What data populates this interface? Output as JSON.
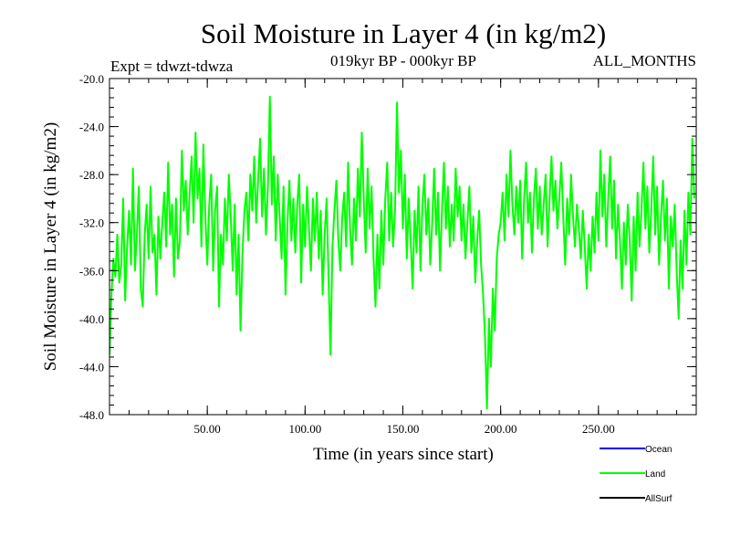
{
  "chart_data": {
    "type": "line",
    "title": "Soil Moisture in Layer 4 (in kg/m2)",
    "subtitle_left": "Expt = tdwzt-tdwza",
    "subtitle_center": "019kyr BP - 000kyr BP",
    "subtitle_right": "ALL_MONTHS",
    "xlabel": "Time (in years since start)",
    "ylabel": "Soil Moisture in Layer 4 (in kg/m2)",
    "xlim": [
      0,
      300
    ],
    "ylim": [
      -48,
      -20
    ],
    "x_ticks": [
      50,
      100,
      150,
      200,
      250
    ],
    "x_tick_labels": [
      "50.00",
      "100.00",
      "150.00",
      "200.00",
      "250.00"
    ],
    "y_ticks": [
      -20,
      -24,
      -28,
      -32,
      -36,
      -40,
      -44,
      -48
    ],
    "y_tick_labels": [
      "-20.0",
      "-24.0",
      "-28.0",
      "-32.0",
      "-36.0",
      "-40.0",
      "-44.0",
      "-48.0"
    ],
    "grid": false,
    "legend_position": "bottom-right",
    "series": [
      {
        "name": "Land",
        "color": "#00ff00",
        "x_start": 0,
        "x_step": 1,
        "values": [
          -43.0,
          -38.0,
          -35.0,
          -36.5,
          -33.0,
          -37.0,
          -35.5,
          -30.0,
          -38.5,
          -34.0,
          -31.0,
          -35.5,
          -27.5,
          -36.0,
          -33.0,
          -29.0,
          -37.5,
          -39.0,
          -33.0,
          -30.5,
          -35.0,
          -29.0,
          -34.5,
          -33.0,
          -38.0,
          -31.5,
          -35.0,
          -32.0,
          -29.5,
          -34.0,
          -27.0,
          -33.0,
          -30.5,
          -36.5,
          -30.0,
          -35.0,
          -33.5,
          -26.0,
          -31.0,
          -28.5,
          -33.0,
          -29.5,
          -26.5,
          -32.0,
          -24.5,
          -30.0,
          -27.5,
          -34.0,
          -25.5,
          -31.5,
          -35.5,
          -30.5,
          -28.0,
          -36.0,
          -31.0,
          -29.0,
          -39.0,
          -33.0,
          -35.5,
          -30.0,
          -33.5,
          -28.0,
          -31.5,
          -36.0,
          -30.5,
          -38.0,
          -33.0,
          -41.0,
          -34.5,
          -31.0,
          -29.5,
          -33.5,
          -28.0,
          -31.0,
          -26.5,
          -32.0,
          -28.5,
          -25.0,
          -31.5,
          -27.5,
          -33.0,
          -29.0,
          -21.5,
          -30.5,
          -26.5,
          -33.5,
          -28.0,
          -31.5,
          -35.0,
          -29.0,
          -38.0,
          -32.0,
          -28.5,
          -33.5,
          -30.0,
          -34.5,
          -30.5,
          -28.0,
          -37.0,
          -30.5,
          -34.0,
          -29.0,
          -32.5,
          -36.0,
          -30.0,
          -33.5,
          -29.5,
          -35.0,
          -31.0,
          -38.0,
          -33.0,
          -30.0,
          -36.5,
          -43.0,
          -34.0,
          -31.0,
          -28.5,
          -33.5,
          -36.0,
          -31.5,
          -29.5,
          -34.0,
          -27.0,
          -32.5,
          -35.5,
          -30.0,
          -33.5,
          -27.5,
          -31.5,
          -24.5,
          -30.0,
          -34.5,
          -27.5,
          -32.5,
          -29.0,
          -35.0,
          -39.0,
          -33.0,
          -37.5,
          -31.0,
          -35.5,
          -30.0,
          -27.0,
          -33.5,
          -29.5,
          -34.0,
          -31.0,
          -22.0,
          -29.5,
          -26.0,
          -32.5,
          -28.0,
          -35.0,
          -30.0,
          -33.5,
          -37.5,
          -31.0,
          -34.5,
          -29.0,
          -36.0,
          -30.5,
          -28.0,
          -33.0,
          -30.0,
          -35.5,
          -32.0,
          -27.5,
          -33.0,
          -29.5,
          -36.0,
          -31.0,
          -27.0,
          -32.5,
          -29.0,
          -34.0,
          -30.5,
          -33.5,
          -27.5,
          -31.5,
          -29.0,
          -33.5,
          -30.5,
          -35.0,
          -32.0,
          -29.0,
          -34.5,
          -31.5,
          -37.0,
          -33.5,
          -31.0,
          -35.5,
          -38.0,
          -41.5,
          -47.5,
          -40.0,
          -44.0,
          -37.5,
          -41.0,
          -35.0,
          -33.0,
          -32.0,
          -29.5,
          -33.5,
          -28.0,
          -31.5,
          -26.0,
          -30.5,
          -33.0,
          -29.0,
          -32.0,
          -28.5,
          -35.0,
          -30.0,
          -27.0,
          -32.0,
          -29.5,
          -34.5,
          -30.0,
          -27.5,
          -32.5,
          -29.0,
          -33.0,
          -30.5,
          -28.0,
          -34.0,
          -30.0,
          -26.5,
          -31.0,
          -28.5,
          -32.5,
          -30.0,
          -27.0,
          -31.5,
          -35.5,
          -30.0,
          -33.0,
          -28.0,
          -31.5,
          -34.0,
          -30.5,
          -32.5,
          -35.0,
          -31.0,
          -34.0,
          -37.5,
          -33.0,
          -36.0,
          -31.5,
          -34.5,
          -29.5,
          -33.5,
          -26.0,
          -31.5,
          -28.0,
          -34.0,
          -30.0,
          -26.5,
          -32.5,
          -28.5,
          -35.0,
          -30.5,
          -33.5,
          -37.5,
          -32.0,
          -35.5,
          -30.5,
          -33.5,
          -38.5,
          -31.5,
          -36.0,
          -29.5,
          -34.0,
          -31.0,
          -27.0,
          -32.5,
          -29.0,
          -34.5,
          -31.0,
          -26.5,
          -33.0,
          -29.0,
          -35.5,
          -31.5,
          -28.5,
          -33.5,
          -30.0,
          -37.5,
          -31.5,
          -34.0,
          -30.5,
          -36.0,
          -40.0,
          -33.5,
          -37.5,
          -31.0,
          -35.5,
          -29.5,
          -33.0,
          -25.0,
          -30.0
        ]
      }
    ],
    "legend": [
      {
        "label": "Ocean",
        "color": "#0000ff"
      },
      {
        "label": "Land",
        "color": "#00ff00"
      },
      {
        "label": "AllSurf",
        "color": "#000000"
      }
    ]
  }
}
